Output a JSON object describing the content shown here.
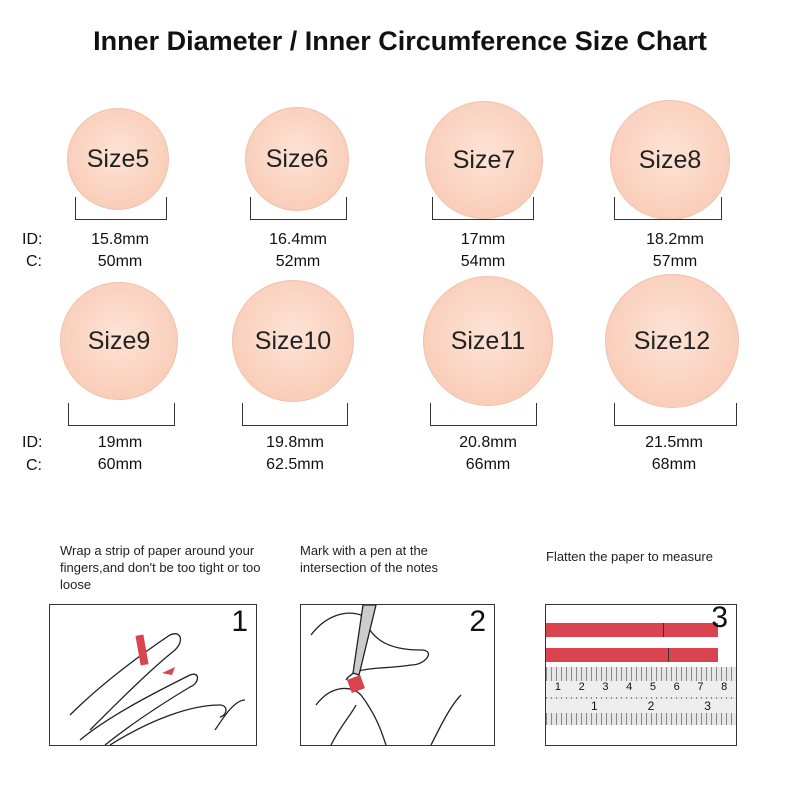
{
  "title": "Inner Diameter / Inner Circumference Size Chart",
  "row_labels": {
    "id": "ID:",
    "c": "C:"
  },
  "sizes": [
    {
      "label": "Size5",
      "id": "15.8mm",
      "c": "50mm"
    },
    {
      "label": "Size6",
      "id": "16.4mm",
      "c": "52mm"
    },
    {
      "label": "Size7",
      "id": "17mm",
      "c": "54mm"
    },
    {
      "label": "Size8",
      "id": "18.2mm",
      "c": "57mm"
    },
    {
      "label": "Size9",
      "id": "19mm",
      "c": "60mm"
    },
    {
      "label": "Size10",
      "id": "19.8mm",
      "c": "62.5mm"
    },
    {
      "label": "Size11",
      "id": "20.8mm",
      "c": "66mm"
    },
    {
      "label": "Size12",
      "id": "21.5mm",
      "c": "68mm"
    }
  ],
  "steps": [
    {
      "number": "1",
      "text": "Wrap a strip of paper around your fingers,and don't be too tight or too loose"
    },
    {
      "number": "2",
      "text": "Mark with a pen at the intersection of the notes"
    },
    {
      "number": "3",
      "text": "Flatten the paper to measure"
    }
  ],
  "ruler": {
    "cm_ticks": [
      "1",
      "2",
      "3",
      "4",
      "5",
      "6",
      "7",
      "8"
    ],
    "inch_ticks": [
      "1",
      "2",
      "3"
    ]
  },
  "colors": {
    "circle": "#f9cdb8",
    "strip": "#d9444f"
  }
}
